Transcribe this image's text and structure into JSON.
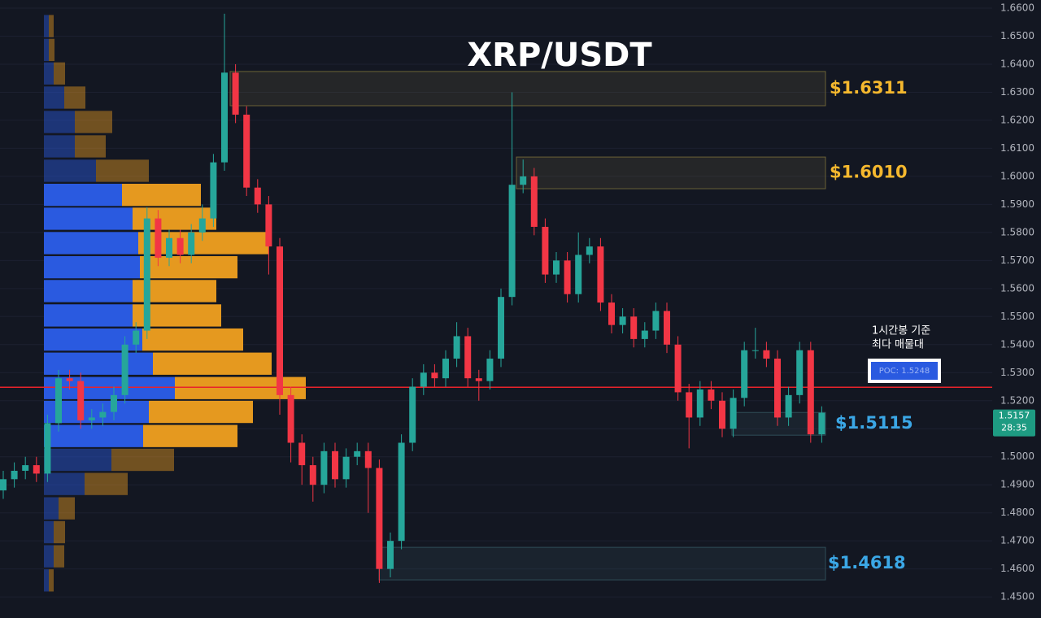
{
  "chart_data": {
    "type": "candlestick",
    "title": "XRP/USDT",
    "ylim": [
      1.4425,
      1.6629
    ],
    "yticks": [
      {
        "value": 1.66,
        "label": "1.6600"
      },
      {
        "value": 1.65,
        "label": "1.6500"
      },
      {
        "value": 1.64,
        "label": "1.6400"
      },
      {
        "value": 1.63,
        "label": "1.6300"
      },
      {
        "value": 1.62,
        "label": "1.6200"
      },
      {
        "value": 1.61,
        "label": "1.6100"
      },
      {
        "value": 1.6,
        "label": "1.6000"
      },
      {
        "value": 1.59,
        "label": "1.5900"
      },
      {
        "value": 1.58,
        "label": "1.5800"
      },
      {
        "value": 1.57,
        "label": "1.5700"
      },
      {
        "value": 1.56,
        "label": "1.5600"
      },
      {
        "value": 1.55,
        "label": "1.5500"
      },
      {
        "value": 1.54,
        "label": "1.5400"
      },
      {
        "value": 1.53,
        "label": "1.5300"
      },
      {
        "value": 1.52,
        "label": "1.5200"
      },
      {
        "value": 1.51,
        "label": "1.5100"
      },
      {
        "value": 1.5,
        "label": "1.5000"
      },
      {
        "value": 1.49,
        "label": "1.4900"
      },
      {
        "value": 1.48,
        "label": "1.4800"
      },
      {
        "value": 1.47,
        "label": "1.4700"
      },
      {
        "value": 1.46,
        "label": "1.4600"
      },
      {
        "value": 1.45,
        "label": "1.4500"
      }
    ],
    "grid": true,
    "up_color": "#26a69a",
    "down_color": "#f23645",
    "ohlc": [
      [
        1.488,
        1.495,
        1.485,
        1.492
      ],
      [
        1.492,
        1.498,
        1.489,
        1.495
      ],
      [
        1.495,
        1.5,
        1.492,
        1.497
      ],
      [
        1.497,
        1.5,
        1.491,
        1.494
      ],
      [
        1.494,
        1.515,
        1.491,
        1.512
      ],
      [
        1.512,
        1.531,
        1.509,
        1.528
      ],
      [
        1.528,
        1.531,
        1.524,
        1.527
      ],
      [
        1.527,
        1.53,
        1.51,
        1.513
      ],
      [
        1.513,
        1.517,
        1.51,
        1.514
      ],
      [
        1.514,
        1.519,
        1.511,
        1.516
      ],
      [
        1.516,
        1.525,
        1.513,
        1.522
      ],
      [
        1.522,
        1.543,
        1.519,
        1.54
      ],
      [
        1.54,
        1.548,
        1.537,
        1.545
      ],
      [
        1.545,
        1.589,
        1.542,
        1.585
      ],
      [
        1.585,
        1.588,
        1.568,
        1.571
      ],
      [
        1.571,
        1.581,
        1.568,
        1.578
      ],
      [
        1.578,
        1.581,
        1.569,
        1.572
      ],
      [
        1.572,
        1.583,
        1.569,
        1.58
      ],
      [
        1.58,
        1.59,
        1.577,
        1.585
      ],
      [
        1.585,
        1.608,
        1.582,
        1.605
      ],
      [
        1.605,
        1.658,
        1.602,
        1.637
      ],
      [
        1.637,
        1.64,
        1.619,
        1.622
      ],
      [
        1.622,
        1.625,
        1.593,
        1.596
      ],
      [
        1.596,
        1.599,
        1.587,
        1.59
      ],
      [
        1.59,
        1.593,
        1.565,
        1.575
      ],
      [
        1.575,
        1.578,
        1.515,
        1.522
      ],
      [
        1.522,
        1.525,
        1.498,
        1.505
      ],
      [
        1.505,
        1.508,
        1.49,
        1.497
      ],
      [
        1.497,
        1.5,
        1.484,
        1.49
      ],
      [
        1.49,
        1.505,
        1.487,
        1.502
      ],
      [
        1.502,
        1.505,
        1.489,
        1.492
      ],
      [
        1.492,
        1.503,
        1.489,
        1.5
      ],
      [
        1.5,
        1.505,
        1.497,
        1.502
      ],
      [
        1.502,
        1.505,
        1.48,
        1.496
      ],
      [
        1.496,
        1.499,
        1.455,
        1.46
      ],
      [
        1.46,
        1.473,
        1.457,
        1.47
      ],
      [
        1.47,
        1.508,
        1.467,
        1.505
      ],
      [
        1.505,
        1.528,
        1.502,
        1.525
      ],
      [
        1.525,
        1.533,
        1.522,
        1.53
      ],
      [
        1.53,
        1.533,
        1.525,
        1.528
      ],
      [
        1.528,
        1.538,
        1.525,
        1.535
      ],
      [
        1.535,
        1.548,
        1.532,
        1.543
      ],
      [
        1.543,
        1.546,
        1.525,
        1.528
      ],
      [
        1.528,
        1.531,
        1.52,
        1.527
      ],
      [
        1.527,
        1.538,
        1.524,
        1.535
      ],
      [
        1.535,
        1.56,
        1.532,
        1.557
      ],
      [
        1.557,
        1.63,
        1.554,
        1.597
      ],
      [
        1.597,
        1.606,
        1.594,
        1.6
      ],
      [
        1.6,
        1.603,
        1.579,
        1.582
      ],
      [
        1.582,
        1.585,
        1.562,
        1.565
      ],
      [
        1.565,
        1.573,
        1.562,
        1.57
      ],
      [
        1.57,
        1.573,
        1.555,
        1.558
      ],
      [
        1.558,
        1.58,
        1.555,
        1.572
      ],
      [
        1.572,
        1.578,
        1.569,
        1.575
      ],
      [
        1.575,
        1.578,
        1.552,
        1.555
      ],
      [
        1.555,
        1.558,
        1.544,
        1.547
      ],
      [
        1.547,
        1.553,
        1.544,
        1.55
      ],
      [
        1.55,
        1.553,
        1.539,
        1.542
      ],
      [
        1.542,
        1.548,
        1.539,
        1.545
      ],
      [
        1.545,
        1.555,
        1.542,
        1.552
      ],
      [
        1.552,
        1.555,
        1.537,
        1.54
      ],
      [
        1.54,
        1.543,
        1.52,
        1.523
      ],
      [
        1.523,
        1.526,
        1.503,
        1.514
      ],
      [
        1.514,
        1.527,
        1.511,
        1.524
      ],
      [
        1.524,
        1.527,
        1.517,
        1.52
      ],
      [
        1.52,
        1.523,
        1.507,
        1.51
      ],
      [
        1.51,
        1.524,
        1.507,
        1.521
      ],
      [
        1.521,
        1.541,
        1.518,
        1.538
      ],
      [
        1.538,
        1.546,
        1.535,
        1.538
      ],
      [
        1.538,
        1.541,
        1.532,
        1.535
      ],
      [
        1.535,
        1.538,
        1.511,
        1.514
      ],
      [
        1.514,
        1.525,
        1.511,
        1.522
      ],
      [
        1.522,
        1.541,
        1.519,
        1.538
      ],
      [
        1.538,
        1.541,
        1.505,
        1.508
      ],
      [
        1.508,
        1.518,
        1.505,
        1.5157
      ]
    ],
    "volume_profile": {
      "prices": [
        1.6536,
        1.6451,
        1.6367,
        1.6281,
        1.6194,
        1.6107,
        1.602,
        1.5934,
        1.5849,
        1.5762,
        1.5676,
        1.5591,
        1.5504,
        1.5418,
        1.5332,
        1.5245,
        1.516,
        1.5074,
        1.4989,
        1.4903,
        1.4816,
        1.4731,
        1.4645,
        1.4559
      ],
      "buy": [
        6,
        6,
        12,
        25,
        38,
        38,
        64,
        96,
        109,
        116,
        118,
        109,
        109,
        121,
        134,
        161,
        129,
        122,
        83,
        50,
        18,
        12,
        12,
        6
      ],
      "sell": [
        6,
        7,
        14,
        26,
        46,
        38,
        65,
        97,
        103,
        160,
        120,
        103,
        109,
        124,
        146,
        161,
        128,
        116,
        77,
        53,
        20,
        14,
        13,
        6
      ],
      "value_area": [
        1.503,
        1.598
      ],
      "buy_color": "#2a5ae0",
      "sell_color": "#f0a020"
    },
    "zones": [
      {
        "value": 1.6311,
        "label": "$1.6311",
        "top": 1.6374,
        "bottom": 1.6252,
        "color": "#f5b82e"
      },
      {
        "value": 1.601,
        "label": "$1.6010",
        "top": 1.6069,
        "bottom": 1.5956,
        "color": "#f5b82e"
      },
      {
        "value": 1.5115,
        "label": "$1.5115",
        "top": 1.5158,
        "bottom": 1.5077,
        "color": "#3ba7e6"
      },
      {
        "value": 1.4618,
        "label": "$1.4618",
        "top": 1.4677,
        "bottom": 1.4561,
        "color": "#3ba7e6"
      }
    ],
    "poc": {
      "value": 1.5248,
      "label": "POC: 1.5248",
      "color": "#e8232b"
    },
    "annotations": [
      "1시간봉 기준",
      "최다 매물대"
    ],
    "last_price": 1.5157,
    "countdown": "28:35"
  }
}
